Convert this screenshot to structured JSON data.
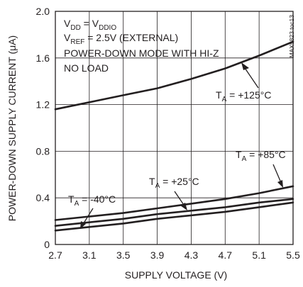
{
  "chart_data": {
    "type": "line",
    "title": "",
    "xlabel": "SUPPLY VOLTAGE (V)",
    "ylabel": "POWER-DOWN SUPPLY CURRENT (μA)",
    "xlim": [
      2.7,
      5.5
    ],
    "ylim": [
      0,
      2.0
    ],
    "x_ticks": [
      "2.7",
      "3.1",
      "3.5",
      "3.9",
      "4.3",
      "4.7",
      "5.1",
      "5.5"
    ],
    "y_ticks": [
      "0",
      "0.4",
      "0.8",
      "1.2",
      "1.6",
      "2.0"
    ],
    "grid": true,
    "conditions": {
      "vdd": {
        "main": "V",
        "sub": "DD",
        "mid": " = V",
        "sub2": "DDIO"
      },
      "vref": {
        "main": "V",
        "sub": "REF",
        "rest": " = 2.5V (EXTERNAL)"
      },
      "mode": "POWER-DOWN MODE WITH HI-Z",
      "load": "NO LOAD"
    },
    "chart_id": "MAX5823 toc13",
    "series": [
      {
        "label_main": "T",
        "label_sub": "A",
        "label_rest": " = +125°C",
        "x": [
          2.7,
          3.1,
          3.5,
          3.9,
          4.3,
          4.7,
          5.1,
          5.5
        ],
        "y": [
          1.16,
          1.22,
          1.28,
          1.34,
          1.42,
          1.51,
          1.62,
          1.74
        ]
      },
      {
        "label_main": "T",
        "label_sub": "A",
        "label_rest": " = +85°C",
        "x": [
          2.7,
          3.1,
          3.5,
          3.9,
          4.3,
          4.7,
          5.1,
          5.5
        ],
        "y": [
          0.21,
          0.24,
          0.27,
          0.31,
          0.35,
          0.39,
          0.44,
          0.5
        ]
      },
      {
        "label_main": "T",
        "label_sub": "A",
        "label_rest": " = +25°C",
        "x": [
          2.7,
          3.1,
          3.5,
          3.9,
          4.3,
          4.7,
          5.1,
          5.5
        ],
        "y": [
          0.16,
          0.19,
          0.22,
          0.26,
          0.29,
          0.32,
          0.36,
          0.39
        ]
      },
      {
        "label_main": "T",
        "label_sub": "A",
        "label_rest": " = -40°C",
        "x": [
          2.7,
          3.1,
          3.5,
          3.9,
          4.3,
          4.7,
          5.1,
          5.5
        ],
        "y": [
          0.12,
          0.15,
          0.18,
          0.22,
          0.25,
          0.28,
          0.32,
          0.36
        ]
      }
    ]
  }
}
